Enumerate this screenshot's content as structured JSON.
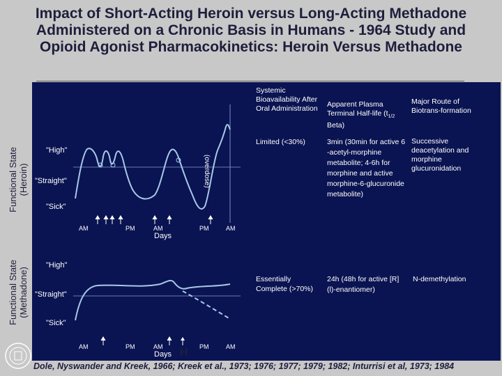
{
  "title": "Impact of Short-Acting Heroin versus Long-Acting Methadone Administered on a Chronic Basis in Humans - 1964 Study and Opioid Agonist Pharmacokinetics: Heroin Versus Methadone",
  "side_labels": {
    "heroin_line1": "Functional State",
    "heroin_line2": "(Heroin)",
    "methadone_line1": "Functional State",
    "methadone_line2": "(Methadone)"
  },
  "heroin_panel": {
    "state_high": "\"High\"",
    "state_straight": "\"Straight\"",
    "state_sick": "\"Sick\"",
    "overdose": "(overdose)",
    "time_labels": [
      "AM",
      "PM",
      "AM",
      "PM",
      "AM"
    ],
    "days": "Days"
  },
  "methadone_panel": {
    "state_high": "\"High\"",
    "state_straight": "\"Straight\"",
    "state_sick": "\"Sick\"",
    "time_labels": [
      "AM",
      "PM",
      "AM",
      "PM",
      "AM"
    ],
    "days": "Days",
    "h_mark": "H"
  },
  "table": {
    "headers": {
      "bioavailability": "Systemic Bioavailability After Oral Administration",
      "half_life": "Apparent Plasma Terminal Half-life (t",
      "half_life_sub": "1/2",
      "half_life_end": " Beta)",
      "route": "Major Route of Biotrans-formation"
    },
    "heroin": {
      "bioavailability": "Limited (<30%)",
      "half_life": "3min (30min for active 6 -acetyl-morphine metabolite; 4-6h for morphine and active morphine-6-glucuronide metabolite)",
      "route": "Successive deacetylation and morphine glucuronidation"
    },
    "methadone": {
      "bioavailability": "Essentially Complete (>70%)",
      "half_life": "24h (48h for active [R](l)-enantiomer)",
      "route": "N-demethylation"
    }
  },
  "citation": "Dole, Nyswander and Kreek, 1966; Kreek et al., 1973; 1976; 1977; 1979; 1982; Inturrisi et al, 1973; 1984",
  "colors": {
    "panel_background": "#0a1452",
    "curve": "#a8c8e8",
    "title_text": "#1e1e3c",
    "slide_background": "#c8c8c8"
  }
}
